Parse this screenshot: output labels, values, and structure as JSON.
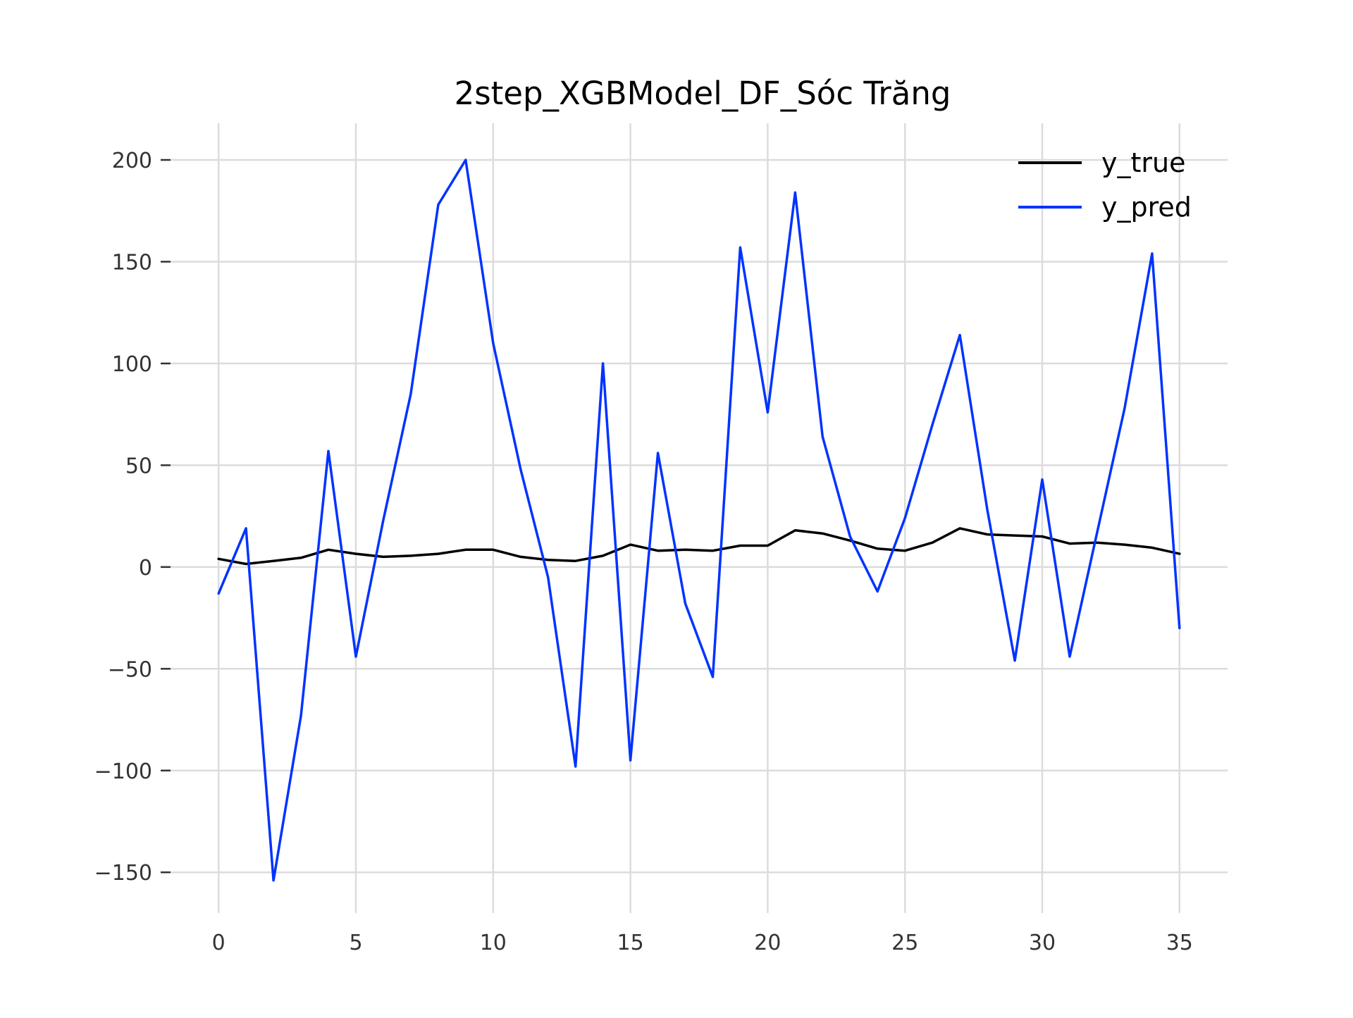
{
  "chart_data": {
    "type": "line",
    "title": "2step_XGBModel_DF_Sóc Trăng",
    "xlabel": "",
    "ylabel": "",
    "xlim": [
      -1.75,
      36.75
    ],
    "ylim": [
      -170,
      218
    ],
    "x_ticks": [
      0,
      5,
      10,
      15,
      20,
      25,
      30,
      35
    ],
    "y_ticks": [
      -150,
      -100,
      -50,
      0,
      50,
      100,
      150,
      200
    ],
    "x_tick_labels": [
      "0",
      "5",
      "10",
      "15",
      "20",
      "25",
      "30",
      "35"
    ],
    "y_tick_labels": [
      "−150",
      "−100",
      "−50",
      "0",
      "50",
      "100",
      "150",
      "200"
    ],
    "grid": true,
    "legend_position": "top-right",
    "x": [
      0,
      1,
      2,
      3,
      4,
      5,
      6,
      7,
      8,
      9,
      10,
      11,
      12,
      13,
      14,
      15,
      16,
      17,
      18,
      19,
      20,
      21,
      22,
      23,
      24,
      25,
      26,
      27,
      28,
      29,
      30,
      31,
      32,
      33,
      34,
      35
    ],
    "series": [
      {
        "name": "y_true",
        "color": "#000000",
        "values": [
          4,
          1.5,
          3,
          4.5,
          8.5,
          6.5,
          5,
          5.5,
          6.5,
          8.5,
          8.5,
          5,
          3.5,
          3,
          5.5,
          11,
          8,
          8.5,
          8,
          10.5,
          10.5,
          18,
          16.5,
          13,
          9,
          8,
          12,
          19,
          16,
          15.5,
          15,
          11.5,
          12,
          11,
          9.5,
          6.5
        ]
      },
      {
        "name": "y_pred",
        "color": "#0033ff",
        "values": [
          -13,
          19,
          -154,
          -73,
          57,
          -44,
          23,
          85,
          178,
          200,
          110,
          48,
          -5,
          -98,
          100,
          -95,
          56,
          -18,
          -54,
          157,
          76,
          184,
          64,
          15,
          -12,
          24,
          70,
          114,
          28,
          -46,
          43,
          -44,
          17,
          78,
          154,
          -30
        ]
      }
    ]
  }
}
